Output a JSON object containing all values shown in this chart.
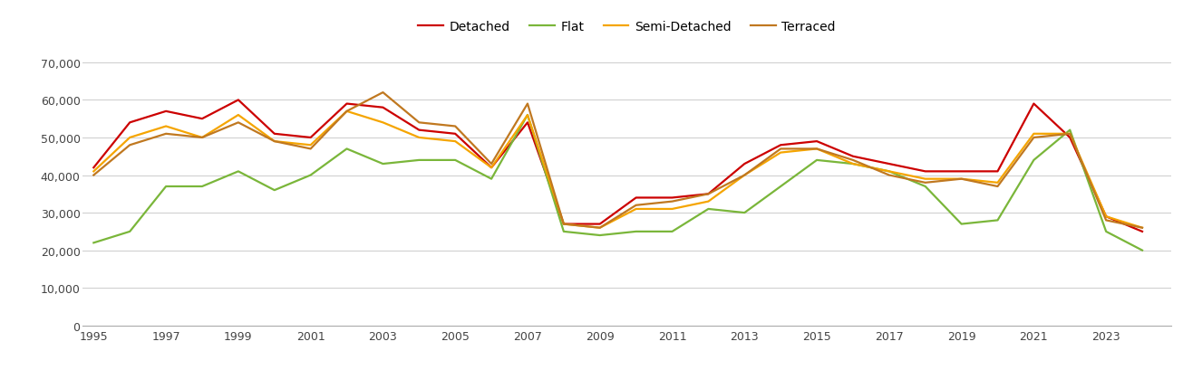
{
  "years": [
    1995,
    1996,
    1997,
    1998,
    1999,
    2000,
    2001,
    2002,
    2003,
    2004,
    2005,
    2006,
    2007,
    2008,
    2009,
    2010,
    2011,
    2012,
    2013,
    2014,
    2015,
    2016,
    2017,
    2018,
    2019,
    2020,
    2021,
    2022,
    2023,
    2024
  ],
  "detached": [
    42000,
    54000,
    57000,
    55000,
    60000,
    51000,
    50000,
    59000,
    58000,
    52000,
    51000,
    42000,
    54000,
    27000,
    27000,
    34000,
    34000,
    35000,
    43000,
    48000,
    49000,
    45000,
    43000,
    41000,
    41000,
    41000,
    59000,
    50000,
    29000,
    25000
  ],
  "flat": [
    22000,
    25000,
    37000,
    37000,
    41000,
    36000,
    40000,
    47000,
    43000,
    44000,
    44000,
    39000,
    56000,
    25000,
    24000,
    25000,
    25000,
    31000,
    30000,
    37000,
    44000,
    43000,
    41000,
    37000,
    27000,
    28000,
    44000,
    52000,
    25000,
    20000
  ],
  "semi_detached": [
    41000,
    50000,
    53000,
    50000,
    56000,
    49000,
    48000,
    57000,
    54000,
    50000,
    49000,
    42000,
    56000,
    27000,
    26000,
    31000,
    31000,
    33000,
    40000,
    46000,
    47000,
    43000,
    41000,
    39000,
    39000,
    38000,
    51000,
    51000,
    29000,
    26000
  ],
  "terraced": [
    40000,
    48000,
    51000,
    50000,
    54000,
    49000,
    47000,
    57000,
    62000,
    54000,
    53000,
    43000,
    59000,
    27000,
    26000,
    32000,
    33000,
    35000,
    40000,
    47000,
    47000,
    44000,
    40000,
    38000,
    39000,
    37000,
    50000,
    51000,
    28000,
    26000
  ],
  "colors": {
    "detached": "#cc0000",
    "flat": "#7ab63a",
    "semi_detached": "#f5a500",
    "terraced": "#c07820"
  },
  "ylim": [
    0,
    72000
  ],
  "yticks": [
    0,
    10000,
    20000,
    30000,
    40000,
    50000,
    60000,
    70000
  ],
  "background_color": "#ffffff",
  "grid_color": "#cccccc",
  "linewidth": 1.6
}
